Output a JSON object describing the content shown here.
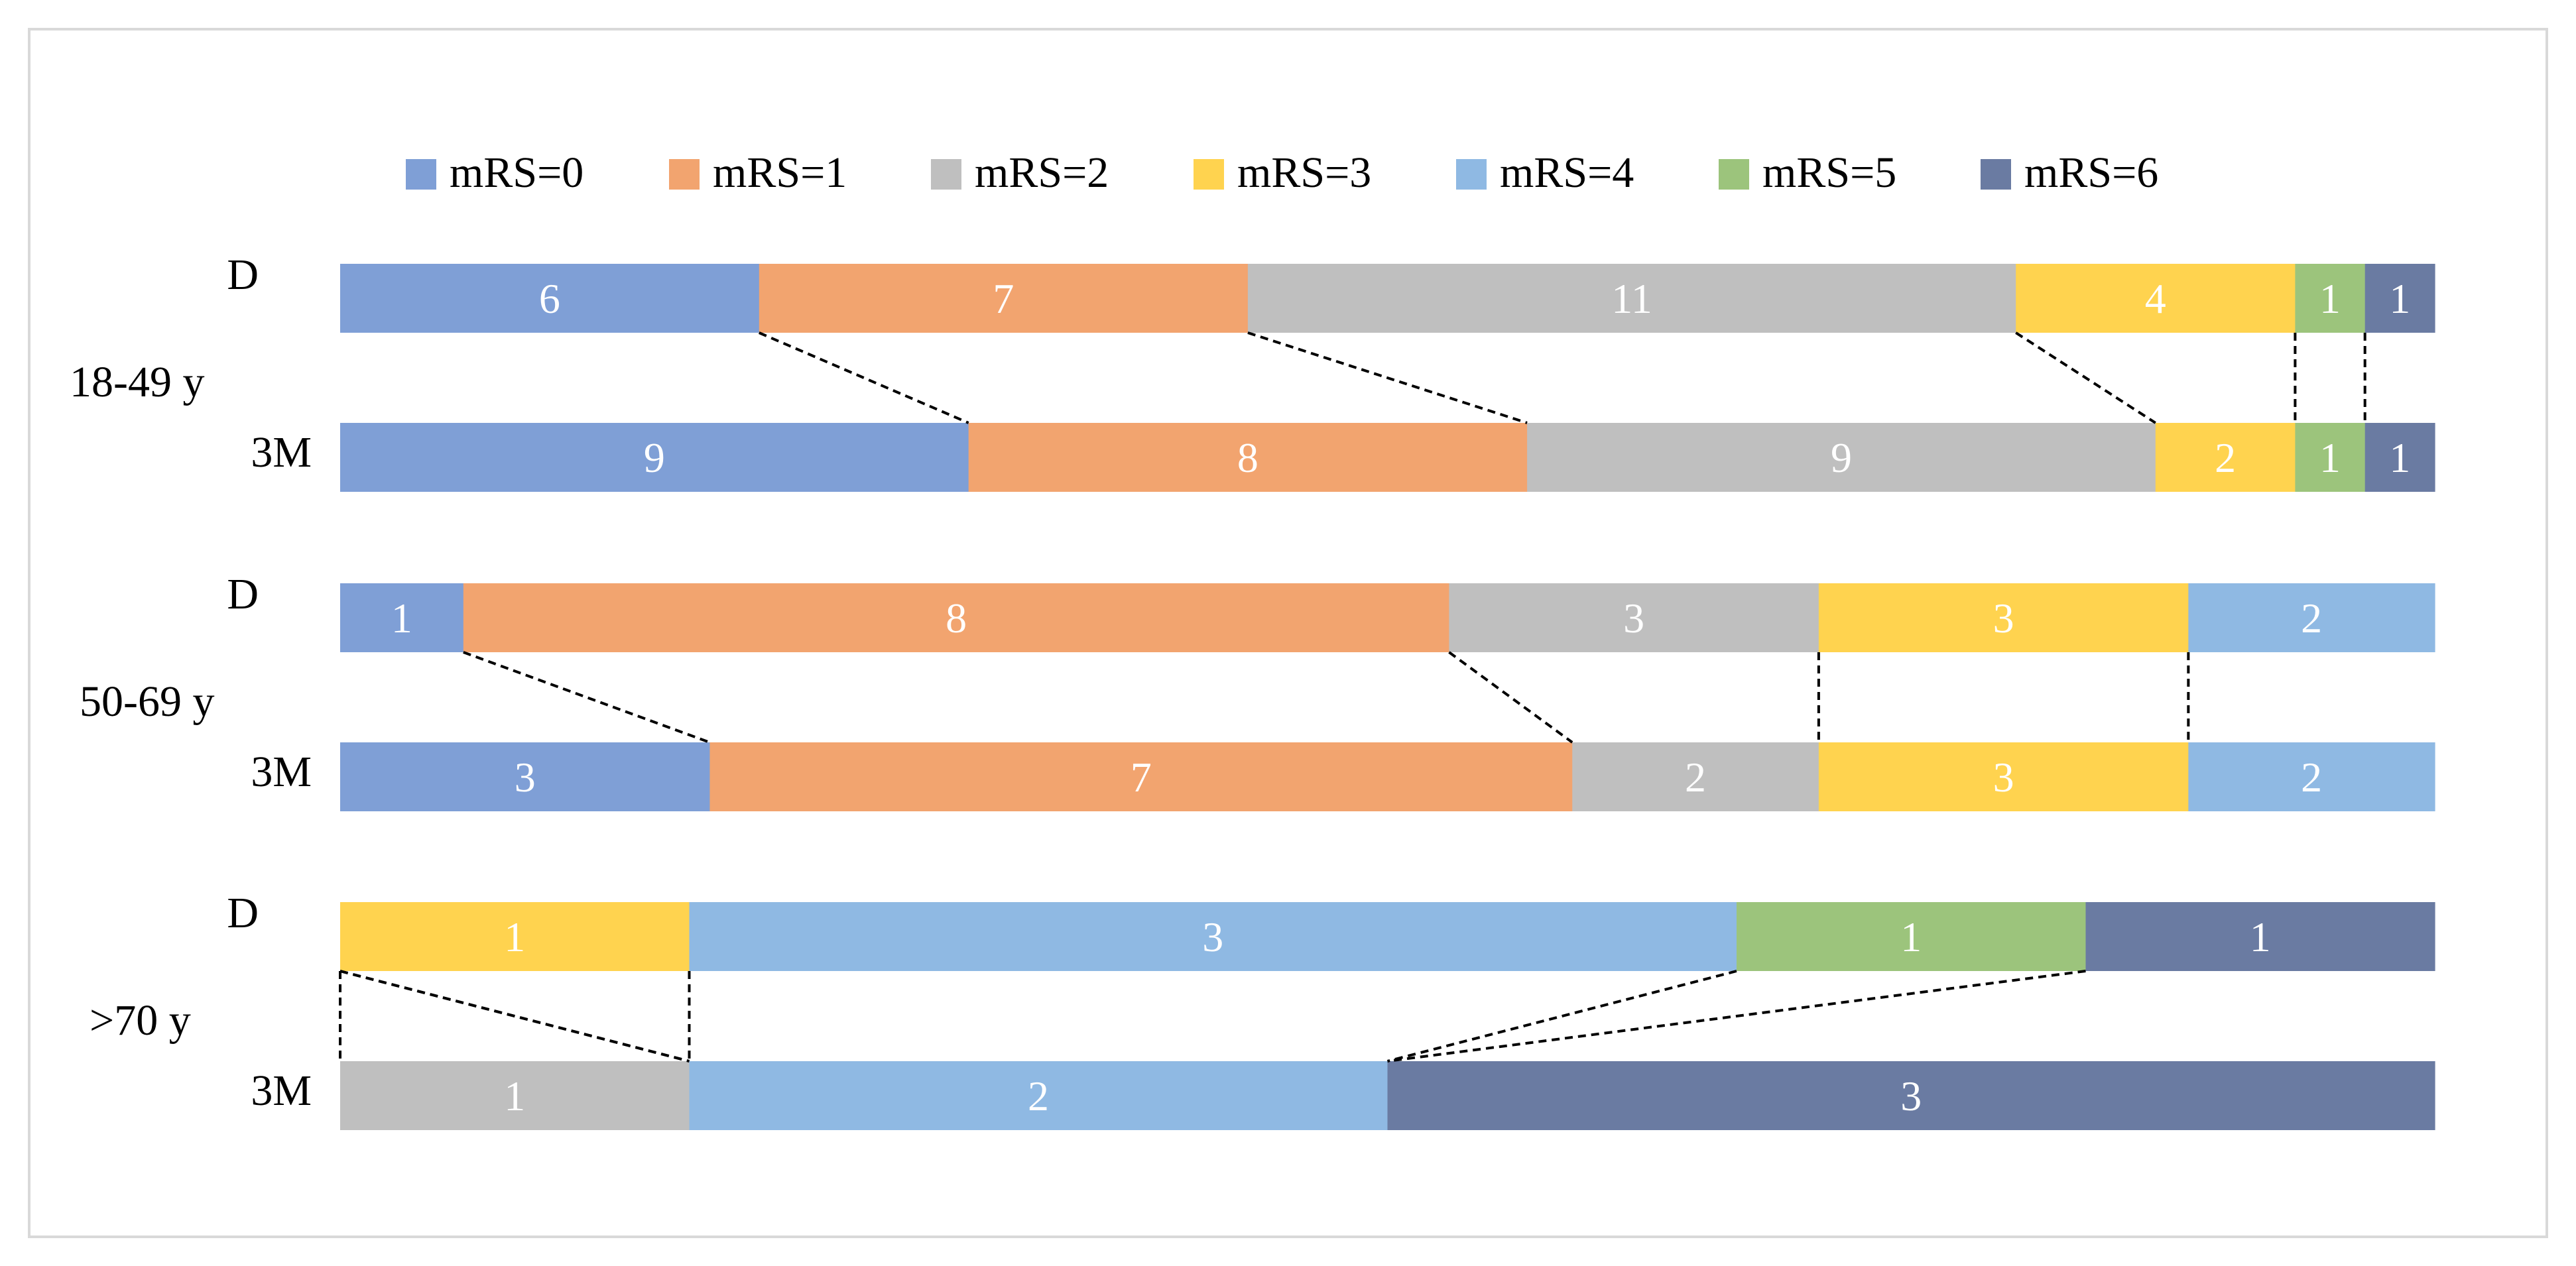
{
  "chart_data": {
    "type": "bar",
    "orientation": "horizontal",
    "stacked": true,
    "normalized": true,
    "title": "",
    "xlabel": "",
    "ylabel": "",
    "legend_position": "top",
    "grid": false,
    "legend": [
      "mRS=0",
      "mRS=1",
      "mRS=2",
      "mRS=3",
      "mRS=4",
      "mRS=5",
      "mRS=6"
    ],
    "colors": [
      "#7f9fd6",
      "#f2a46f",
      "#bfbfbf",
      "#ffd34f",
      "#8fb9e3",
      "#9cc47c",
      "#6a7ba2"
    ],
    "groups": [
      {
        "label": "18-49 y",
        "rows": [
          {
            "label": "D",
            "values": [
              6,
              7,
              11,
              4,
              0,
              1,
              1
            ]
          },
          {
            "label": "3M",
            "values": [
              9,
              8,
              9,
              2,
              0,
              1,
              1
            ]
          }
        ]
      },
      {
        "label": "50-69 y",
        "rows": [
          {
            "label": "D",
            "values": [
              1,
              8,
              3,
              3,
              2,
              0,
              0
            ]
          },
          {
            "label": "3M",
            "values": [
              3,
              7,
              2,
              3,
              2,
              0,
              0
            ]
          }
        ]
      },
      {
        "label": ">70 y",
        "rows": [
          {
            "label": "D",
            "values": [
              0,
              0,
              0,
              1,
              3,
              1,
              1
            ]
          },
          {
            "label": "3M",
            "values": [
              0,
              0,
              1,
              0,
              2,
              0,
              3
            ]
          }
        ]
      }
    ]
  }
}
